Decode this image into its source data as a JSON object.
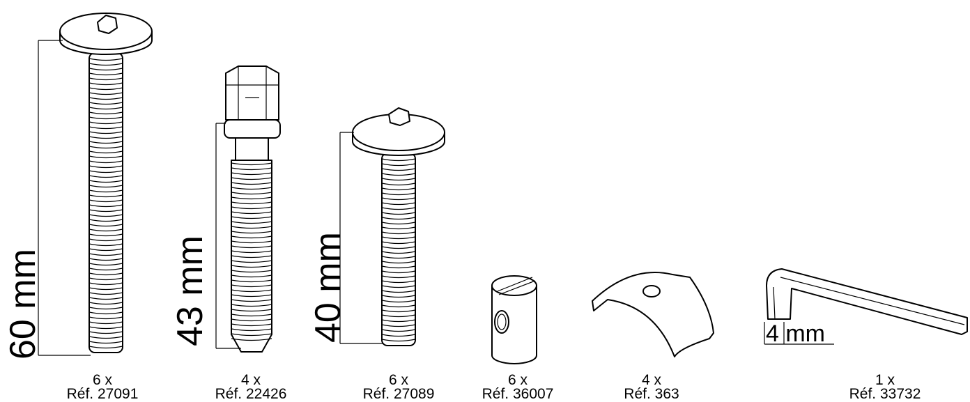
{
  "items": [
    {
      "quantity": "6 x",
      "reference": "Réf. 27091",
      "dimension": "60 mm"
    },
    {
      "quantity": "4 x",
      "reference": "Réf. 22426",
      "dimension": "43 mm"
    },
    {
      "quantity": "6 x",
      "reference": "Réf. 27089",
      "dimension": "40 mm"
    },
    {
      "quantity": "6 x",
      "reference": "Réf. 36007"
    },
    {
      "quantity": "4 x",
      "reference": "Réf. 363"
    },
    {
      "quantity": "1 x",
      "reference": "Réf. 33732",
      "dimension": "4 mm"
    }
  ]
}
